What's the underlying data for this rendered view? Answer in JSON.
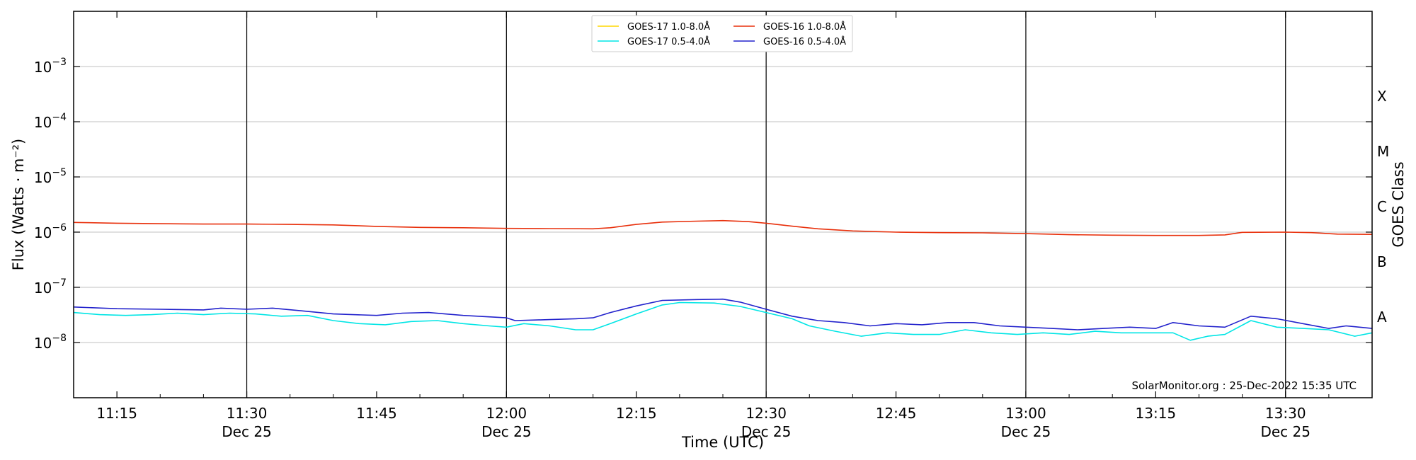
{
  "chart_data": {
    "type": "line",
    "title": "",
    "xlabel": "Time (UTC)",
    "ylabel": "Flux (Watts · m⁻²)",
    "y2label": "GOES Class",
    "yscale": "log",
    "ylim": [
      1e-09,
      0.01
    ],
    "xlim": [
      "11:10",
      "13:40"
    ],
    "grid": "horizontal at decades",
    "legend_placement": "top-center",
    "x_ticks": [
      {
        "time": "11:15",
        "label": "11:15",
        "sublabel": ""
      },
      {
        "time": "11:30",
        "label": "11:30",
        "sublabel": "Dec 25"
      },
      {
        "time": "11:45",
        "label": "11:45",
        "sublabel": ""
      },
      {
        "time": "12:00",
        "label": "12:00",
        "sublabel": "Dec 25"
      },
      {
        "time": "12:15",
        "label": "12:15",
        "sublabel": ""
      },
      {
        "time": "12:30",
        "label": "12:30",
        "sublabel": "Dec 25"
      },
      {
        "time": "12:45",
        "label": "12:45",
        "sublabel": ""
      },
      {
        "time": "13:00",
        "label": "13:00",
        "sublabel": "Dec 25"
      },
      {
        "time": "13:15",
        "label": "13:15",
        "sublabel": ""
      },
      {
        "time": "13:30",
        "label": "13:30",
        "sublabel": "Dec 25"
      }
    ],
    "vertical_lines": [
      "11:30",
      "12:00",
      "12:30",
      "13:00",
      "13:30"
    ],
    "y_ticks": [
      {
        "base": "10",
        "exp": "−8",
        "value": 1e-08
      },
      {
        "base": "10",
        "exp": "−7",
        "value": 1e-07
      },
      {
        "base": "10",
        "exp": "−6",
        "value": 1e-06
      },
      {
        "base": "10",
        "exp": "−5",
        "value": 1e-05
      },
      {
        "base": "10",
        "exp": "−4",
        "value": 0.0001
      },
      {
        "base": "10",
        "exp": "−3",
        "value": 0.001
      }
    ],
    "goes_classes": [
      {
        "label": "A",
        "value": 3e-08
      },
      {
        "label": "B",
        "value": 3e-07
      },
      {
        "label": "C",
        "value": 3e-06
      },
      {
        "label": "M",
        "value": 3e-05
      },
      {
        "label": "X",
        "value": 0.0003
      }
    ],
    "series": [
      {
        "name": "GOES-16 1.0-8.0Å",
        "color": "#e8300c",
        "points": [
          [
            "11:10",
            1.5e-06
          ],
          [
            "11:15",
            1.45e-06
          ],
          [
            "11:20",
            1.42e-06
          ],
          [
            "11:25",
            1.4e-06
          ],
          [
            "11:30",
            1.4e-06
          ],
          [
            "11:35",
            1.38e-06
          ],
          [
            "11:40",
            1.35e-06
          ],
          [
            "11:45",
            1.27e-06
          ],
          [
            "11:50",
            1.22e-06
          ],
          [
            "11:55",
            1.2e-06
          ],
          [
            "12:00",
            1.17e-06
          ],
          [
            "12:05",
            1.16e-06
          ],
          [
            "12:10",
            1.15e-06
          ],
          [
            "12:12",
            1.2e-06
          ],
          [
            "12:15",
            1.38e-06
          ],
          [
            "12:18",
            1.52e-06
          ],
          [
            "12:22",
            1.58e-06
          ],
          [
            "12:25",
            1.62e-06
          ],
          [
            "12:28",
            1.55e-06
          ],
          [
            "12:30",
            1.45e-06
          ],
          [
            "12:33",
            1.28e-06
          ],
          [
            "12:36",
            1.15e-06
          ],
          [
            "12:40",
            1.05e-06
          ],
          [
            "12:45",
            1e-06
          ],
          [
            "12:50",
            9.8e-07
          ],
          [
            "12:55",
            9.7e-07
          ],
          [
            "13:00",
            9.4e-07
          ],
          [
            "13:05",
            9e-07
          ],
          [
            "13:10",
            8.8e-07
          ],
          [
            "13:15",
            8.7e-07
          ],
          [
            "13:20",
            8.7e-07
          ],
          [
            "13:23",
            8.9e-07
          ],
          [
            "13:25",
            9.9e-07
          ],
          [
            "13:30",
            1e-06
          ],
          [
            "13:33",
            9.8e-07
          ],
          [
            "13:36",
            9.2e-07
          ],
          [
            "13:40",
            9.1e-07
          ]
        ]
      },
      {
        "name": "GOES-16 0.5-4.0Å",
        "color": "#2222cc",
        "points": [
          [
            "11:10",
            4.4e-08
          ],
          [
            "11:15",
            4.1e-08
          ],
          [
            "11:20",
            4e-08
          ],
          [
            "11:25",
            3.9e-08
          ],
          [
            "11:27",
            4.2e-08
          ],
          [
            "11:30",
            4e-08
          ],
          [
            "11:33",
            4.2e-08
          ],
          [
            "11:36",
            3.8e-08
          ],
          [
            "11:40",
            3.3e-08
          ],
          [
            "11:45",
            3.1e-08
          ],
          [
            "11:48",
            3.4e-08
          ],
          [
            "11:51",
            3.5e-08
          ],
          [
            "11:55",
            3.1e-08
          ],
          [
            "12:00",
            2.8e-08
          ],
          [
            "12:01",
            2.5e-08
          ],
          [
            "12:05",
            2.6e-08
          ],
          [
            "12:08",
            2.7e-08
          ],
          [
            "12:10",
            2.8e-08
          ],
          [
            "12:12",
            3.5e-08
          ],
          [
            "12:15",
            4.6e-08
          ],
          [
            "12:18",
            5.8e-08
          ],
          [
            "12:22",
            6e-08
          ],
          [
            "12:25",
            6.1e-08
          ],
          [
            "12:27",
            5.4e-08
          ],
          [
            "12:30",
            4e-08
          ],
          [
            "12:33",
            3e-08
          ],
          [
            "12:36",
            2.5e-08
          ],
          [
            "12:39",
            2.3e-08
          ],
          [
            "12:42",
            2e-08
          ],
          [
            "12:45",
            2.2e-08
          ],
          [
            "12:48",
            2.1e-08
          ],
          [
            "12:51",
            2.3e-08
          ],
          [
            "12:54",
            2.3e-08
          ],
          [
            "12:57",
            2e-08
          ],
          [
            "13:00",
            1.9e-08
          ],
          [
            "13:03",
            1.8e-08
          ],
          [
            "13:06",
            1.7e-08
          ],
          [
            "13:09",
            1.8e-08
          ],
          [
            "13:12",
            1.9e-08
          ],
          [
            "13:15",
            1.8e-08
          ],
          [
            "13:17",
            2.3e-08
          ],
          [
            "13:20",
            2e-08
          ],
          [
            "13:23",
            1.9e-08
          ],
          [
            "13:26",
            3e-08
          ],
          [
            "13:29",
            2.7e-08
          ],
          [
            "13:32",
            2.2e-08
          ],
          [
            "13:35",
            1.8e-08
          ],
          [
            "13:37",
            2e-08
          ],
          [
            "13:40",
            1.8e-08
          ]
        ]
      },
      {
        "name": "GOES-17 1.0-8.0Å",
        "color": "#ffd700",
        "points": []
      },
      {
        "name": "GOES-17 0.5-4.0Å",
        "color": "#00e5e5",
        "points": [
          [
            "11:10",
            3.5e-08
          ],
          [
            "11:13",
            3.2e-08
          ],
          [
            "11:16",
            3.1e-08
          ],
          [
            "11:19",
            3.2e-08
          ],
          [
            "11:22",
            3.4e-08
          ],
          [
            "11:25",
            3.2e-08
          ],
          [
            "11:28",
            3.4e-08
          ],
          [
            "11:31",
            3.3e-08
          ],
          [
            "11:34",
            3e-08
          ],
          [
            "11:37",
            3.1e-08
          ],
          [
            "11:40",
            2.5e-08
          ],
          [
            "11:43",
            2.2e-08
          ],
          [
            "11:46",
            2.1e-08
          ],
          [
            "11:49",
            2.4e-08
          ],
          [
            "11:52",
            2.5e-08
          ],
          [
            "11:55",
            2.2e-08
          ],
          [
            "11:58",
            2e-08
          ],
          [
            "12:00",
            1.9e-08
          ],
          [
            "12:02",
            2.2e-08
          ],
          [
            "12:05",
            2e-08
          ],
          [
            "12:08",
            1.7e-08
          ],
          [
            "12:10",
            1.7e-08
          ],
          [
            "12:12",
            2.2e-08
          ],
          [
            "12:15",
            3.3e-08
          ],
          [
            "12:18",
            4.8e-08
          ],
          [
            "12:20",
            5.3e-08
          ],
          [
            "12:24",
            5.2e-08
          ],
          [
            "12:27",
            4.5e-08
          ],
          [
            "12:30",
            3.5e-08
          ],
          [
            "12:33",
            2.7e-08
          ],
          [
            "12:35",
            2e-08
          ],
          [
            "12:38",
            1.6e-08
          ],
          [
            "12:41",
            1.3e-08
          ],
          [
            "12:44",
            1.5e-08
          ],
          [
            "12:47",
            1.4e-08
          ],
          [
            "12:50",
            1.4e-08
          ],
          [
            "12:53",
            1.7e-08
          ],
          [
            "12:56",
            1.5e-08
          ],
          [
            "12:59",
            1.4e-08
          ],
          [
            "13:02",
            1.5e-08
          ],
          [
            "13:05",
            1.4e-08
          ],
          [
            "13:08",
            1.6e-08
          ],
          [
            "13:11",
            1.5e-08
          ],
          [
            "13:14",
            1.5e-08
          ],
          [
            "13:17",
            1.5e-08
          ],
          [
            "13:19",
            1.1e-08
          ],
          [
            "13:21",
            1.3e-08
          ],
          [
            "13:23",
            1.4e-08
          ],
          [
            "13:26",
            2.5e-08
          ],
          [
            "13:29",
            1.9e-08
          ],
          [
            "13:32",
            1.8e-08
          ],
          [
            "13:35",
            1.7e-08
          ],
          [
            "13:38",
            1.3e-08
          ],
          [
            "13:40",
            1.5e-08
          ]
        ]
      }
    ],
    "legend_order": [
      "GOES-17 1.0-8.0Å",
      "GOES-16 1.0-8.0Å",
      "GOES-17 0.5-4.0Å",
      "GOES-16 0.5-4.0Å"
    ],
    "credit": "SolarMonitor.org : 25-Dec-2022 15:35 UTC"
  }
}
